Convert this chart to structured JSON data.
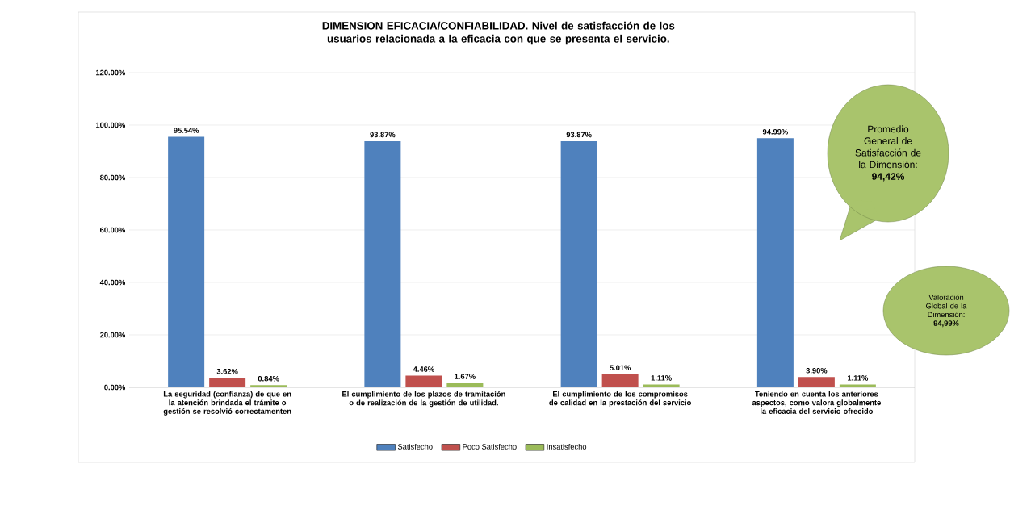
{
  "chart_data": {
    "type": "bar",
    "title": "DIMENSION EFICACIA/CONFIABILIDAD. Nivel de satisfacción de los usuarios relacionada a la eficacia con que se presenta el servicio.",
    "categories": [
      "La seguridad (confianza) de que en la atención brindada el trámite o gestión se resolvió correctamenten",
      "El cumplimiento de los plazos de tramitación o de realización de la gestión de utilidad.",
      "El cumplimiento de los compromisos de calidad en la prestación del servicio",
      "Teniendo en cuenta los anteriores aspectos, como valora globalmente la eficacia del servicio ofrecido"
    ],
    "series": [
      {
        "name": "Satisfecho",
        "color": "#4f81bd",
        "values": [
          95.54,
          93.87,
          93.87,
          94.99
        ],
        "value_labels": [
          "95.54%",
          "93.87%",
          "93.87%",
          "94.99%"
        ]
      },
      {
        "name": "Poco Satisfecho",
        "color": "#c0504d",
        "values": [
          3.62,
          4.46,
          5.01,
          3.9
        ],
        "value_labels": [
          "3.62%",
          "4.46%",
          "5.01%",
          "3.90%"
        ]
      },
      {
        "name": "Insatisfecho",
        "color": "#9bbb59",
        "values": [
          0.84,
          1.67,
          1.11,
          1.11
        ],
        "value_labels": [
          "0.84%",
          "1.67%",
          "1.11%",
          "1.11%"
        ]
      }
    ],
    "ylim": [
      0,
      120
    ],
    "yticks": [
      {
        "value": 0,
        "label": "0.00%"
      },
      {
        "value": 20,
        "label": "20.00%"
      },
      {
        "value": 40,
        "label": "40.00%"
      },
      {
        "value": 60,
        "label": "60.00%"
      },
      {
        "value": 80,
        "label": "80.00%"
      },
      {
        "value": 100,
        "label": "100.00%"
      },
      {
        "value": 120,
        "label": "120.00%"
      }
    ],
    "grid": "y",
    "legend": "bottom",
    "annotations": [
      "Promedio General de Satisfacción de la Dimensión: **94,42%**",
      "Valoración Global de la Dimensión: **94,99%**"
    ]
  }
}
